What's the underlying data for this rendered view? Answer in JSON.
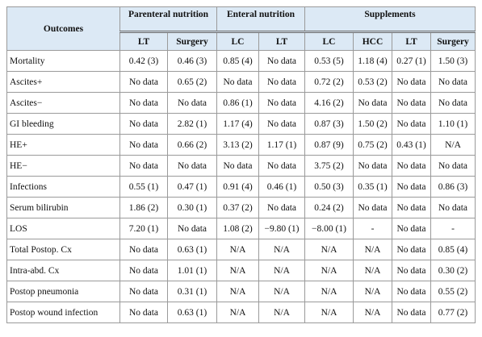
{
  "table": {
    "header": {
      "outcomes": "Outcomes",
      "groups": [
        {
          "label": "Parenteral nutrition",
          "columns": [
            "LT",
            "Surgery"
          ]
        },
        {
          "label": "Enteral nutrition",
          "columns": [
            "LC",
            "LT"
          ]
        },
        {
          "label": "Supplements",
          "columns": [
            "LC",
            "HCC",
            "LT",
            "Surgery"
          ]
        }
      ]
    },
    "rows": [
      [
        "Mortality",
        "0.42 (3)",
        "0.46 (3)",
        "0.85 (4)",
        "No data",
        "0.53 (5)",
        "1.18 (4)",
        "0.27 (1)",
        "1.50 (3)"
      ],
      [
        "Ascites+",
        "No data",
        "0.65 (2)",
        "No data",
        "No data",
        "0.72 (2)",
        "0.53 (2)",
        "No data",
        "No data"
      ],
      [
        "Ascites−",
        "No data",
        "No data",
        "0.86 (1)",
        "No data",
        "4.16 (2)",
        "No data",
        "No data",
        "No data"
      ],
      [
        "GI bleeding",
        "No data",
        "2.82 (1)",
        "1.17 (4)",
        "No data",
        "0.87 (3)",
        "1.50 (2)",
        "No data",
        "1.10 (1)"
      ],
      [
        "HE+",
        "No data",
        "0.66 (2)",
        "3.13 (2)",
        "1.17 (1)",
        "0.87 (9)",
        "0.75 (2)",
        "0.43 (1)",
        "N/A"
      ],
      [
        "HE−",
        "No data",
        "No data",
        "No data",
        "No data",
        "3.75 (2)",
        "No data",
        "No data",
        "No data"
      ],
      [
        "Infections",
        "0.55 (1)",
        "0.47 (1)",
        "0.91 (4)",
        "0.46 (1)",
        "0.50 (3)",
        "0.35 (1)",
        "No data",
        "0.86 (3)"
      ],
      [
        "Serum bilirubin",
        "1.86 (2)",
        "0.30 (1)",
        "0.37 (2)",
        "No data",
        "0.24 (2)",
        "No data",
        "No data",
        "No data"
      ],
      [
        "LOS",
        "7.20 (1)",
        "No data",
        "1.08 (2)",
        "−9.80 (1)",
        "−8.00 (1)",
        "-",
        "No data",
        "-"
      ],
      [
        "Total Postop. Cx",
        "No data",
        "0.63 (1)",
        "N/A",
        "N/A",
        "N/A",
        "N/A",
        "No data",
        "0.85 (4)"
      ],
      [
        "Intra-abd. Cx",
        "No data",
        "1.01 (1)",
        "N/A",
        "N/A",
        "N/A",
        "N/A",
        "No data",
        "0.30 (2)"
      ],
      [
        "Postop pneumonia",
        "No data",
        "0.31 (1)",
        "N/A",
        "N/A",
        "N/A",
        "N/A",
        "No data",
        "0.55 (2)"
      ],
      [
        "Postop wound infection",
        "No data",
        "0.63 (1)",
        "N/A",
        "N/A",
        "N/A",
        "N/A",
        "No data",
        "0.77 (2)"
      ]
    ]
  }
}
